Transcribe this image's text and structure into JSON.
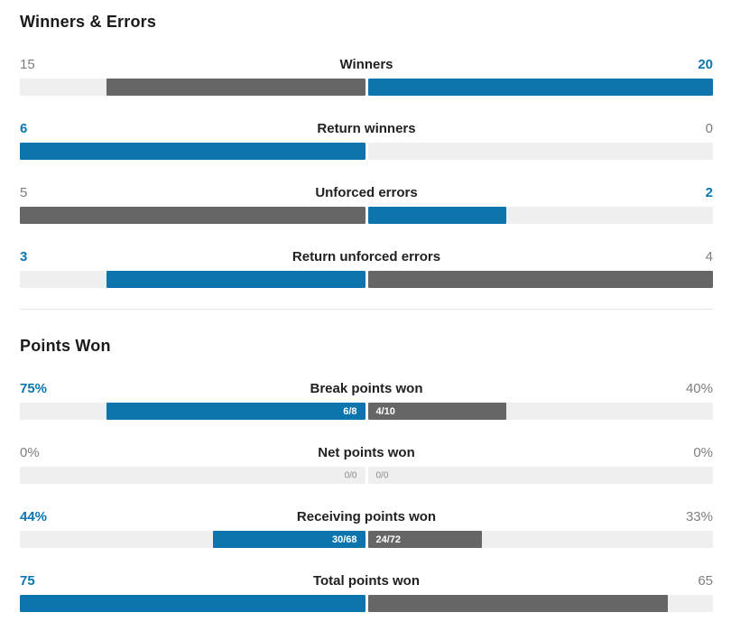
{
  "colors": {
    "blue": "#0c75ad",
    "gray": "#666666",
    "track": "#efefef",
    "divider": "#e4e4e4",
    "title": "#1a1a1a",
    "label_dark": "#212121",
    "value_muted": "#7d7d7d",
    "detail_on_fill": "#ffffff",
    "detail_muted": "#8a8a8a"
  },
  "sections": [
    {
      "title": "Winners & Errors",
      "rows": [
        {
          "label": "Winners",
          "left": {
            "value": "15",
            "tone": "gray",
            "fill": 75
          },
          "right": {
            "value": "20",
            "tone": "blue",
            "fill": 100
          }
        },
        {
          "label": "Return winners",
          "left": {
            "value": "6",
            "tone": "blue",
            "fill": 100
          },
          "right": {
            "value": "0",
            "tone": "gray",
            "fill": 0
          }
        },
        {
          "label": "Unforced errors",
          "left": {
            "value": "5",
            "tone": "gray",
            "fill": 100
          },
          "right": {
            "value": "2",
            "tone": "blue",
            "fill": 40
          }
        },
        {
          "label": "Return unforced errors",
          "left": {
            "value": "3",
            "tone": "blue",
            "fill": 75
          },
          "right": {
            "value": "4",
            "tone": "gray",
            "fill": 100
          }
        }
      ]
    },
    {
      "title": "Points Won",
      "rows": [
        {
          "label": "Break points won",
          "left": {
            "value": "75%",
            "tone": "blue",
            "fill": 75,
            "detail": "6/8"
          },
          "right": {
            "value": "40%",
            "tone": "gray",
            "fill": 40,
            "detail": "4/10"
          }
        },
        {
          "label": "Net points won",
          "left": {
            "value": "0%",
            "tone": "gray",
            "fill": 0,
            "detail": "0/0"
          },
          "right": {
            "value": "0%",
            "tone": "gray",
            "fill": 0,
            "detail": "0/0"
          }
        },
        {
          "label": "Receiving points won",
          "left": {
            "value": "44%",
            "tone": "blue",
            "fill": 44,
            "detail": "30/68"
          },
          "right": {
            "value": "33%",
            "tone": "gray",
            "fill": 33,
            "detail": "24/72"
          }
        },
        {
          "label": "Total points won",
          "left": {
            "value": "75",
            "tone": "blue",
            "fill": 100
          },
          "right": {
            "value": "65",
            "tone": "gray",
            "fill": 87
          }
        }
      ]
    }
  ],
  "chart_data": {
    "type": "bar",
    "orientation": "horizontal-paired",
    "legend_position": "none",
    "grid": false,
    "sections": [
      {
        "title": "Winners & Errors",
        "categories": [
          "Winners",
          "Return winners",
          "Unforced errors",
          "Return unforced errors"
        ],
        "series": [
          {
            "name": "player-left",
            "values": [
              15,
              6,
              5,
              3
            ]
          },
          {
            "name": "player-right",
            "values": [
              20,
              0,
              2,
              4
            ]
          }
        ],
        "note": "each pair normalized to max of the two values; leading value highlighted blue"
      },
      {
        "title": "Points Won",
        "categories": [
          "Break points won",
          "Net points won",
          "Receiving points won",
          "Total points won"
        ],
        "series": [
          {
            "name": "player-left",
            "values": [
              "75%",
              "0%",
              "44%",
              75
            ],
            "fractions": [
              "6/8",
              "0/0",
              "30/68",
              null
            ]
          },
          {
            "name": "player-right",
            "values": [
              "40%",
              "0%",
              "33%",
              65
            ],
            "fractions": [
              "4/10",
              "0/0",
              "24/72",
              null
            ]
          }
        ],
        "note": "percent rows filled by percent of half-width; total points normalized to max (75)"
      }
    ],
    "highlight_color": "#0c75ad",
    "secondary_color": "#666666"
  }
}
